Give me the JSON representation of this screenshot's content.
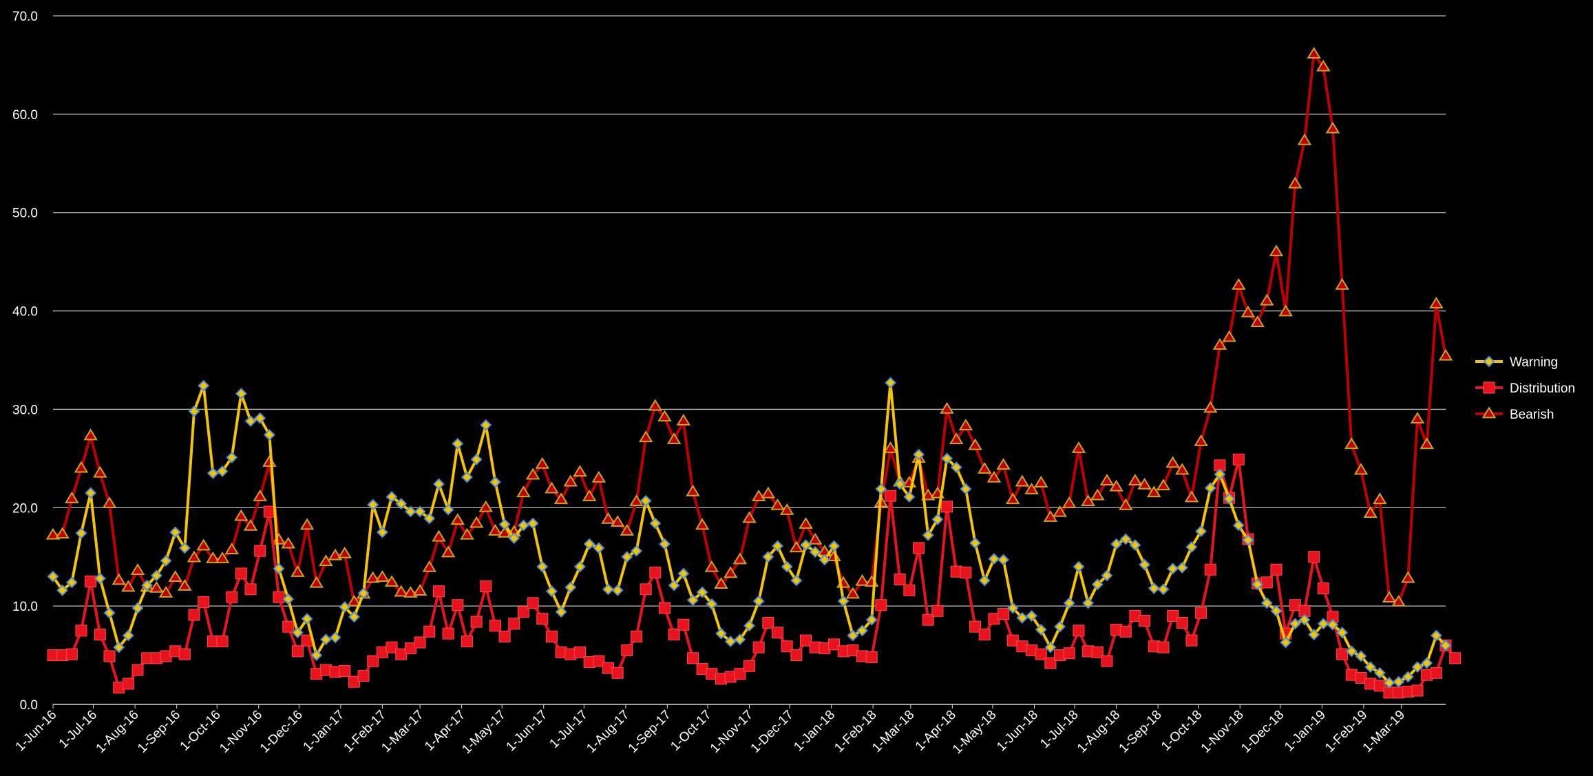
{
  "chart_data": {
    "type": "line",
    "ylim": [
      0,
      70
    ],
    "yticks": [
      "0.0",
      "10.0",
      "20.0",
      "30.0",
      "40.0",
      "50.0",
      "60.0",
      "70.0"
    ],
    "grid": true,
    "legend_position": "right",
    "x_tick_labels": [
      "1-Jun-16",
      "1-Jul-16",
      "1-Aug-16",
      "1-Sep-16",
      "1-Oct-16",
      "1-Nov-16",
      "1-Dec-16",
      "1-Jan-17",
      "1-Feb-17",
      "1-Mar-17",
      "1-Apr-17",
      "1-May-17",
      "1-Jun-17",
      "1-Jul-17",
      "1-Aug-17",
      "1-Sep-17",
      "1-Oct-17",
      "1-Nov-17",
      "1-Dec-17",
      "1-Jan-18",
      "1-Feb-18",
      "1-Mar-18",
      "1-Apr-18",
      "1-May-18",
      "1-Jun-18",
      "1-Jul-18",
      "1-Aug-18",
      "1-Sep-18",
      "1-Oct-18",
      "1-Nov-18",
      "1-Dec-18",
      "1-Jan-19",
      "1-Feb-19",
      "1-Mar-19"
    ],
    "x_start": "2016-06-01",
    "x_step_days": 7,
    "colors": {
      "warning_line": "#f5c400",
      "warning_marker_edge": "#4f8fd6",
      "distribution": "#e8141d",
      "bearish_line": "#c00000",
      "bearish_marker_edge": "#c9a227",
      "grid": "#bfbfbf"
    },
    "series": [
      {
        "name": "Warning",
        "marker": "diamond",
        "values": [
          13.0,
          11.6,
          12.4,
          17.4,
          21.5,
          12.8,
          9.3,
          5.8,
          7.0,
          9.8,
          12.1,
          13.1,
          14.6,
          17.5,
          15.9,
          29.8,
          32.4,
          23.5,
          23.7,
          25.1,
          31.6,
          28.8,
          29.1,
          27.4,
          13.8,
          10.7,
          7.3,
          8.7,
          5.0,
          6.6,
          6.8,
          9.9,
          8.9,
          11.3,
          20.3,
          17.5,
          21.1,
          20.4,
          19.6,
          19.6,
          18.9,
          22.4,
          19.8,
          26.5,
          23.1,
          24.9,
          28.4,
          22.6,
          18.3,
          16.9,
          18.2,
          18.4,
          14.0,
          11.5,
          9.4,
          11.9,
          14.0,
          16.3,
          15.9,
          11.7,
          11.6,
          15.0,
          15.6,
          20.7,
          18.4,
          16.3,
          12.1,
          13.3,
          10.6,
          11.4,
          10.2,
          7.2,
          6.4,
          6.6,
          8.0,
          10.5,
          15.0,
          16.1,
          14.0,
          12.6,
          16.2,
          15.5,
          14.7,
          16.1,
          10.5,
          7.0,
          7.5,
          8.6,
          21.9,
          32.7,
          22.4,
          21.1,
          25.4,
          17.2,
          18.8,
          25.0,
          24.1,
          21.9,
          16.4,
          12.6,
          14.8,
          14.7,
          9.8,
          8.8,
          9.0,
          7.6,
          5.8,
          7.9,
          10.3,
          14.0,
          10.3,
          12.2,
          13.1,
          16.3,
          16.8,
          16.2,
          14.2,
          11.8,
          11.7,
          13.8,
          13.9,
          16.0,
          17.6,
          22.0,
          23.4,
          20.9,
          18.2,
          16.7,
          12.2,
          10.3,
          9.5,
          6.3,
          8.2,
          8.6,
          7.1,
          8.2,
          8.1,
          7.3,
          5.4,
          4.9,
          3.8,
          3.2,
          2.2,
          2.3,
          2.8,
          3.8,
          4.2,
          7.0,
          6.0
        ]
      },
      {
        "name": "Distribution",
        "marker": "square",
        "values": [
          5.0,
          5.0,
          5.1,
          7.5,
          12.5,
          7.1,
          4.9,
          1.7,
          2.1,
          3.5,
          4.7,
          4.7,
          4.9,
          5.4,
          5.1,
          9.1,
          10.4,
          6.4,
          6.4,
          10.9,
          13.3,
          11.7,
          15.6,
          19.6,
          10.9,
          7.9,
          5.4,
          6.5,
          3.1,
          3.5,
          3.3,
          3.4,
          2.3,
          2.9,
          4.4,
          5.3,
          5.8,
          5.1,
          5.7,
          6.3,
          7.4,
          11.5,
          7.2,
          10.1,
          6.4,
          8.4,
          12.0,
          8.0,
          6.9,
          8.2,
          9.4,
          10.3,
          8.7,
          6.9,
          5.3,
          5.1,
          5.3,
          4.3,
          4.4,
          3.7,
          3.2,
          5.5,
          6.9,
          11.7,
          13.4,
          9.8,
          7.1,
          8.1,
          4.7,
          3.6,
          3.1,
          2.6,
          2.8,
          3.1,
          3.9,
          5.8,
          8.3,
          7.3,
          5.9,
          5.0,
          6.5,
          5.8,
          5.7,
          6.1,
          5.4,
          5.5,
          4.9,
          4.8,
          10.1,
          21.2,
          12.7,
          11.6,
          15.9,
          8.6,
          9.5,
          20.1,
          13.5,
          13.4,
          7.9,
          7.1,
          8.7,
          9.2,
          6.5,
          5.9,
          5.5,
          5.1,
          4.2,
          5.0,
          5.2,
          7.5,
          5.4,
          5.3,
          4.4,
          7.6,
          7.4,
          9.0,
          8.5,
          5.9,
          5.8,
          9.0,
          8.3,
          6.5,
          9.3,
          13.7,
          24.3,
          21.0,
          24.9,
          16.8,
          12.3,
          12.4,
          13.7,
          7.2,
          10.1,
          9.5,
          15.0,
          11.8,
          8.9,
          5.1,
          3.0,
          2.7,
          2.1,
          1.9,
          1.2,
          1.2,
          1.3,
          1.4,
          3.0,
          3.2,
          6.0,
          4.7
        ]
      },
      {
        "name": "Bearish",
        "marker": "triangle",
        "values": [
          17.2,
          17.3,
          20.9,
          24.0,
          27.3,
          23.5,
          20.4,
          12.6,
          11.9,
          13.6,
          11.9,
          11.8,
          11.3,
          12.9,
          12.0,
          14.9,
          16.1,
          14.8,
          14.8,
          15.7,
          19.1,
          18.1,
          21.1,
          24.6,
          16.7,
          16.3,
          13.4,
          18.2,
          12.3,
          14.5,
          15.1,
          15.3,
          10.4,
          11.2,
          12.8,
          12.9,
          12.4,
          11.4,
          11.3,
          11.5,
          13.9,
          17.0,
          15.4,
          18.7,
          17.2,
          18.4,
          20.0,
          17.6,
          17.4,
          17.5,
          21.5,
          23.3,
          24.4,
          21.9,
          20.8,
          22.6,
          23.6,
          21.1,
          23.0,
          18.8,
          18.5,
          17.6,
          20.6,
          27.1,
          30.3,
          29.2,
          26.9,
          28.8,
          21.6,
          18.2,
          13.9,
          12.2,
          13.3,
          14.7,
          18.9,
          21.1,
          21.4,
          20.2,
          19.7,
          15.9,
          18.3,
          16.7,
          15.5,
          15.0,
          12.3,
          11.2,
          12.5,
          12.4,
          20.5,
          26.0,
          22.6,
          22.5,
          25.0,
          21.2,
          21.4,
          30.0,
          26.9,
          28.3,
          26.3,
          23.9,
          23.0,
          24.3,
          20.8,
          22.6,
          21.8,
          22.5,
          19.0,
          19.5,
          20.4,
          26.0,
          20.6,
          21.2,
          22.7,
          22.1,
          20.2,
          22.7,
          22.3,
          21.5,
          22.2,
          24.5,
          23.8,
          21.0,
          26.7,
          30.1,
          36.5,
          37.3,
          42.6,
          39.8,
          38.8,
          41.0,
          46.0,
          39.9,
          52.9,
          57.3,
          66.1,
          64.8,
          58.5,
          42.6,
          26.4,
          23.8,
          19.4,
          20.8,
          10.8,
          10.4,
          12.8,
          29.0,
          26.4,
          40.7,
          35.4
        ]
      }
    ]
  }
}
